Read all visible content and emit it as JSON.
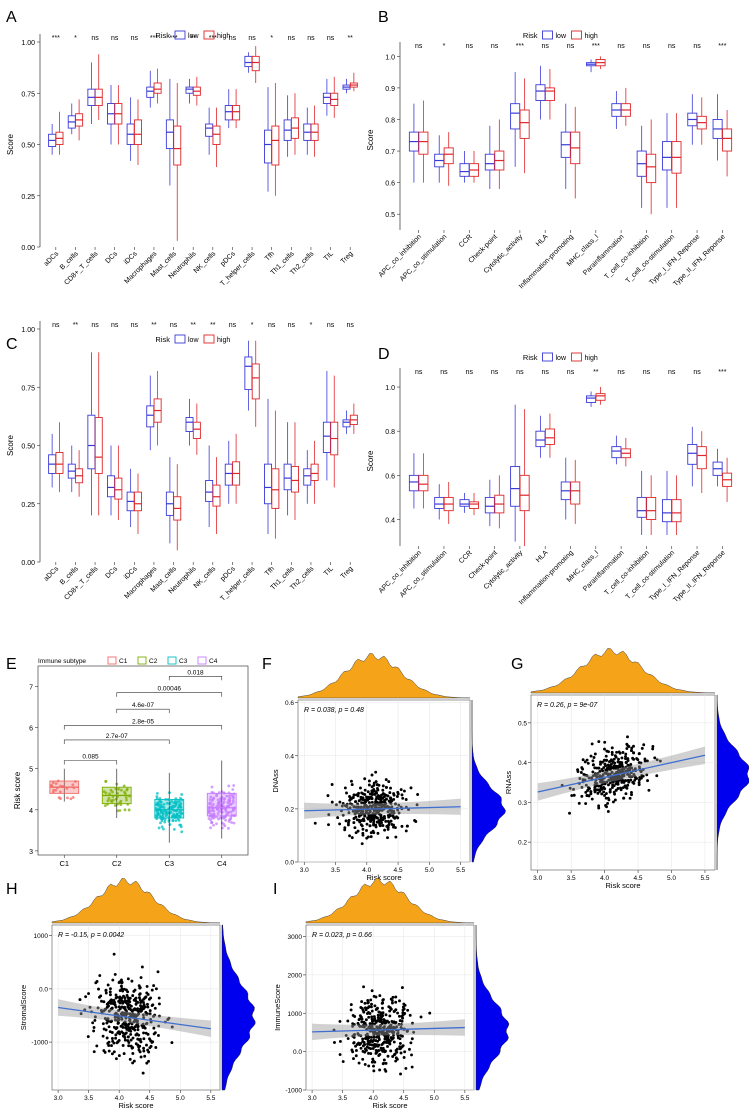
{
  "figure": {
    "colors": {
      "low": "#3a3ad9",
      "high": "#e0262a",
      "c1": "#f26b66",
      "c2": "#7cae00",
      "c3": "#00bfc4",
      "c4": "#c77cff",
      "density_top": "#f5a318",
      "density_right": "#0000ee",
      "fit": "#3f6fd1"
    }
  },
  "chart_data": [
    {
      "panel": "A",
      "type": "box",
      "ylabel": "Score",
      "legend_title": "Risk",
      "legend": [
        "low",
        "high"
      ],
      "ylim": [
        0,
        1
      ],
      "ticks": [
        0,
        0.25,
        0.5,
        0.75,
        1
      ],
      "categories": [
        "aDCs",
        "B_cells",
        "CD8+_T_cells",
        "DCs",
        "iDCs",
        "Macrophages",
        "Mast_cells",
        "Neutrophils",
        "NK_cells",
        "pDCs",
        "T_helper_cells",
        "Tfh",
        "Th1_cells",
        "Th2_cells",
        "TIL",
        "Treg"
      ],
      "sig": [
        "***",
        "*",
        "ns",
        "ns",
        "ns",
        "***",
        "***",
        "**",
        "***",
        "ns",
        "ns",
        "*",
        "ns",
        "ns",
        "ns",
        "**"
      ],
      "low": [
        [
          0.45,
          0.49,
          0.52,
          0.55,
          0.6
        ],
        [
          0.55,
          0.58,
          0.61,
          0.64,
          0.7
        ],
        [
          0.6,
          0.69,
          0.73,
          0.77,
          0.9
        ],
        [
          0.5,
          0.6,
          0.65,
          0.7,
          0.79
        ],
        [
          0.42,
          0.5,
          0.55,
          0.6,
          0.73
        ],
        [
          0.68,
          0.73,
          0.76,
          0.78,
          0.86
        ],
        [
          0.3,
          0.48,
          0.56,
          0.62,
          0.82
        ],
        [
          0.7,
          0.75,
          0.77,
          0.78,
          0.82
        ],
        [
          0.45,
          0.54,
          0.58,
          0.6,
          0.68
        ],
        [
          0.58,
          0.62,
          0.66,
          0.69,
          0.77
        ],
        [
          0.85,
          0.88,
          0.9,
          0.93,
          0.95
        ],
        [
          0.27,
          0.41,
          0.5,
          0.57,
          0.78
        ],
        [
          0.44,
          0.52,
          0.57,
          0.62,
          0.74
        ],
        [
          0.45,
          0.52,
          0.56,
          0.6,
          0.68
        ],
        [
          0.64,
          0.7,
          0.73,
          0.75,
          0.82
        ],
        [
          0.75,
          0.77,
          0.78,
          0.79,
          0.82
        ]
      ],
      "high": [
        [
          0.45,
          0.5,
          0.53,
          0.56,
          0.66
        ],
        [
          0.52,
          0.59,
          0.62,
          0.65,
          0.72
        ],
        [
          0.62,
          0.69,
          0.73,
          0.77,
          0.94
        ],
        [
          0.5,
          0.6,
          0.65,
          0.7,
          0.79
        ],
        [
          0.4,
          0.5,
          0.55,
          0.62,
          0.72
        ],
        [
          0.7,
          0.75,
          0.77,
          0.8,
          0.87
        ],
        [
          0.03,
          0.4,
          0.48,
          0.59,
          0.8
        ],
        [
          0.69,
          0.74,
          0.76,
          0.78,
          0.83
        ],
        [
          0.39,
          0.5,
          0.55,
          0.59,
          0.68
        ],
        [
          0.58,
          0.62,
          0.66,
          0.69,
          0.77
        ],
        [
          0.8,
          0.86,
          0.9,
          0.93,
          0.98
        ],
        [
          0.25,
          0.4,
          0.52,
          0.59,
          0.8
        ],
        [
          0.45,
          0.53,
          0.58,
          0.63,
          0.75
        ],
        [
          0.44,
          0.52,
          0.56,
          0.6,
          0.69
        ],
        [
          0.63,
          0.69,
          0.72,
          0.75,
          0.83
        ],
        [
          0.76,
          0.78,
          0.79,
          0.8,
          0.85
        ]
      ]
    },
    {
      "panel": "B",
      "type": "box",
      "ylabel": "Score",
      "legend_title": "Risk",
      "legend": [
        "low",
        "high"
      ],
      "ylim": [
        0.45,
        1.02
      ],
      "ticks": [
        0.5,
        0.6,
        0.7,
        0.8,
        0.9,
        1.0
      ],
      "categories": [
        "APC_co_inhibition",
        "APC_co_stimulation",
        "CCR",
        "Check-point",
        "Cytolytic_activity",
        "HLA",
        "Inflammation-promoting",
        "MHC_class_I",
        "Parainflammation",
        "T_cell_co-inhibition",
        "T_cell_co-stimulation",
        "Type_I_IFN_Reponse",
        "Type_II_IFN_Reponse"
      ],
      "sig": [
        "ns",
        "*",
        "ns",
        "ns",
        "***",
        "ns",
        "ns",
        "***",
        "ns",
        "ns",
        "ns",
        "ns",
        "***"
      ],
      "low": [
        [
          0.6,
          0.7,
          0.73,
          0.76,
          0.85
        ],
        [
          0.6,
          0.65,
          0.67,
          0.69,
          0.75
        ],
        [
          0.6,
          0.62,
          0.635,
          0.66,
          0.7
        ],
        [
          0.58,
          0.64,
          0.66,
          0.69,
          0.78
        ],
        [
          0.65,
          0.77,
          0.82,
          0.85,
          0.95
        ],
        [
          0.8,
          0.86,
          0.89,
          0.91,
          0.97
        ],
        [
          0.58,
          0.68,
          0.72,
          0.76,
          0.85
        ],
        [
          0.95,
          0.97,
          0.975,
          0.98,
          0.99
        ],
        [
          0.77,
          0.81,
          0.83,
          0.85,
          0.89
        ],
        [
          0.52,
          0.62,
          0.66,
          0.7,
          0.78
        ],
        [
          0.52,
          0.64,
          0.68,
          0.73,
          0.82
        ],
        [
          0.72,
          0.78,
          0.8,
          0.82,
          0.88
        ],
        [
          0.67,
          0.74,
          0.77,
          0.8,
          0.88
        ]
      ],
      "high": [
        [
          0.6,
          0.69,
          0.73,
          0.76,
          0.86
        ],
        [
          0.59,
          0.66,
          0.69,
          0.71,
          0.76
        ],
        [
          0.6,
          0.62,
          0.64,
          0.66,
          0.7
        ],
        [
          0.58,
          0.64,
          0.67,
          0.7,
          0.8
        ],
        [
          0.63,
          0.74,
          0.79,
          0.83,
          0.93
        ],
        [
          0.8,
          0.86,
          0.89,
          0.9,
          0.96
        ],
        [
          0.55,
          0.66,
          0.71,
          0.76,
          0.84
        ],
        [
          0.96,
          0.97,
          0.98,
          0.99,
          1.0
        ],
        [
          0.78,
          0.81,
          0.83,
          0.85,
          0.9
        ],
        [
          0.5,
          0.6,
          0.65,
          0.69,
          0.8
        ],
        [
          0.52,
          0.63,
          0.68,
          0.73,
          0.82
        ],
        [
          0.72,
          0.77,
          0.79,
          0.81,
          0.87
        ],
        [
          0.62,
          0.7,
          0.74,
          0.77,
          0.83
        ]
      ]
    },
    {
      "panel": "C",
      "type": "box",
      "ylabel": "Score",
      "legend_title": "Risk",
      "legend": [
        "low",
        "high"
      ],
      "ylim": [
        0,
        1
      ],
      "ticks": [
        0,
        0.25,
        0.5,
        0.75,
        1
      ],
      "categories": [
        "aDCs",
        "B_cells",
        "CD8+_T_cells",
        "DCs",
        "iDCs",
        "Macrophages",
        "Mast_cells",
        "Neutrophils",
        "NK_cells",
        "pDCs",
        "T_helper_cells",
        "Tfh",
        "Th1_cells",
        "Th2_cells",
        "TIL",
        "Treg"
      ],
      "sig": [
        "ns",
        "**",
        "ns",
        "ns",
        "ns",
        "**",
        "ns",
        "**",
        "**",
        "ns",
        "*",
        "ns",
        "ns",
        "*",
        "ns",
        "ns"
      ],
      "low": [
        [
          0.32,
          0.38,
          0.42,
          0.46,
          0.55
        ],
        [
          0.3,
          0.36,
          0.39,
          0.42,
          0.5
        ],
        [
          0.2,
          0.4,
          0.5,
          0.63,
          0.9
        ],
        [
          0.2,
          0.28,
          0.32,
          0.37,
          0.5
        ],
        [
          0.15,
          0.22,
          0.26,
          0.3,
          0.4
        ],
        [
          0.48,
          0.58,
          0.63,
          0.67,
          0.8
        ],
        [
          0.08,
          0.2,
          0.25,
          0.3,
          0.45
        ],
        [
          0.5,
          0.56,
          0.6,
          0.62,
          0.7
        ],
        [
          0.15,
          0.26,
          0.3,
          0.35,
          0.5
        ],
        [
          0.25,
          0.33,
          0.38,
          0.42,
          0.52
        ],
        [
          0.65,
          0.74,
          0.84,
          0.88,
          0.95
        ],
        [
          0.12,
          0.25,
          0.32,
          0.42,
          0.7
        ],
        [
          0.2,
          0.31,
          0.36,
          0.42,
          0.6
        ],
        [
          0.25,
          0.33,
          0.37,
          0.4,
          0.48
        ],
        [
          0.35,
          0.47,
          0.54,
          0.6,
          0.82
        ],
        [
          0.55,
          0.58,
          0.6,
          0.61,
          0.65
        ]
      ],
      "high": [
        [
          0.3,
          0.38,
          0.42,
          0.47,
          0.6
        ],
        [
          0.28,
          0.34,
          0.37,
          0.4,
          0.48
        ],
        [
          0.2,
          0.38,
          0.45,
          0.62,
          0.9
        ],
        [
          0.18,
          0.27,
          0.31,
          0.36,
          0.5
        ],
        [
          0.12,
          0.22,
          0.25,
          0.3,
          0.38
        ],
        [
          0.5,
          0.6,
          0.65,
          0.7,
          0.82
        ],
        [
          0.05,
          0.18,
          0.23,
          0.28,
          0.42
        ],
        [
          0.46,
          0.53,
          0.57,
          0.6,
          0.68
        ],
        [
          0.12,
          0.24,
          0.28,
          0.33,
          0.45
        ],
        [
          0.25,
          0.33,
          0.38,
          0.43,
          0.55
        ],
        [
          0.58,
          0.7,
          0.79,
          0.85,
          0.95
        ],
        [
          0.1,
          0.23,
          0.31,
          0.4,
          0.65
        ],
        [
          0.18,
          0.3,
          0.35,
          0.41,
          0.6
        ],
        [
          0.25,
          0.35,
          0.38,
          0.42,
          0.52
        ],
        [
          0.32,
          0.46,
          0.53,
          0.6,
          0.8
        ],
        [
          0.55,
          0.59,
          0.61,
          0.63,
          0.68
        ]
      ]
    },
    {
      "panel": "D",
      "type": "box",
      "ylabel": "Score",
      "legend_title": "Risk",
      "legend": [
        "low",
        "high"
      ],
      "ylim": [
        0.28,
        1.05
      ],
      "ticks": [
        0.4,
        0.6,
        0.8,
        1.0
      ],
      "categories": [
        "APC_co_inhibition",
        "APC_co_stimulation",
        "CCR",
        "Check-point",
        "Cytolytic_activity",
        "HLA",
        "Inflammation-promoting",
        "MHC_class_I",
        "Parainflammation",
        "T_cell_co-inhibition",
        "T_cell_co-stimulation",
        "Type_I_IFN_Reponse",
        "Type_II_IFN_Reponse"
      ],
      "sig": [
        "ns",
        "ns",
        "ns",
        "ns",
        "ns",
        "ns",
        "ns",
        "**",
        "ns",
        "ns",
        "ns",
        "ns",
        "***"
      ],
      "low": [
        [
          0.45,
          0.53,
          0.57,
          0.6,
          0.7
        ],
        [
          0.4,
          0.45,
          0.47,
          0.5,
          0.56
        ],
        [
          0.43,
          0.46,
          0.47,
          0.49,
          0.52
        ],
        [
          0.37,
          0.43,
          0.46,
          0.5,
          0.58
        ],
        [
          0.3,
          0.46,
          0.54,
          0.64,
          0.92
        ],
        [
          0.68,
          0.73,
          0.76,
          0.8,
          0.87
        ],
        [
          0.4,
          0.49,
          0.53,
          0.57,
          0.68
        ],
        [
          0.91,
          0.93,
          0.95,
          0.96,
          0.98
        ],
        [
          0.65,
          0.68,
          0.71,
          0.73,
          0.78
        ],
        [
          0.33,
          0.41,
          0.44,
          0.5,
          0.62
        ],
        [
          0.33,
          0.39,
          0.43,
          0.49,
          0.62
        ],
        [
          0.55,
          0.65,
          0.7,
          0.74,
          0.82
        ],
        [
          0.55,
          0.6,
          0.63,
          0.66,
          0.72
        ]
      ],
      "high": [
        [
          0.45,
          0.53,
          0.56,
          0.6,
          0.7
        ],
        [
          0.38,
          0.44,
          0.47,
          0.5,
          0.57
        ],
        [
          0.42,
          0.45,
          0.47,
          0.48,
          0.52
        ],
        [
          0.36,
          0.43,
          0.47,
          0.51,
          0.6
        ],
        [
          0.28,
          0.44,
          0.51,
          0.6,
          0.9
        ],
        [
          0.68,
          0.74,
          0.77,
          0.81,
          0.88
        ],
        [
          0.38,
          0.47,
          0.53,
          0.57,
          0.67
        ],
        [
          0.92,
          0.94,
          0.96,
          0.97,
          1.0
        ],
        [
          0.64,
          0.68,
          0.7,
          0.72,
          0.77
        ],
        [
          0.33,
          0.4,
          0.44,
          0.5,
          0.6
        ],
        [
          0.33,
          0.39,
          0.43,
          0.49,
          0.6
        ],
        [
          0.52,
          0.63,
          0.69,
          0.73,
          0.8
        ],
        [
          0.48,
          0.55,
          0.58,
          0.61,
          0.68
        ]
      ]
    },
    {
      "panel": "E",
      "type": "box",
      "ylabel": "Risk score",
      "legend_title": "Immune subtype",
      "legend": [
        "C1",
        "C2",
        "C3",
        "C4"
      ],
      "ylim": [
        2.9,
        7.5
      ],
      "ticks": [
        3,
        4,
        5,
        6,
        7
      ],
      "categories": [
        "C1",
        "C2",
        "C3",
        "C4"
      ],
      "boxes": [
        [
          4.2,
          4.4,
          4.55,
          4.7,
          5.0
        ],
        [
          3.8,
          4.15,
          4.35,
          4.55,
          5.0
        ],
        [
          3.2,
          3.8,
          4.0,
          4.25,
          4.9
        ],
        [
          3.3,
          3.85,
          4.05,
          4.4,
          5.2
        ]
      ],
      "comparisons": [
        {
          "from": "C1",
          "to": "C2",
          "label": "0.085"
        },
        {
          "from": "C1",
          "to": "C3",
          "label": "2.7e-07"
        },
        {
          "from": "C1",
          "to": "C4",
          "label": "2.8e-05"
        },
        {
          "from": "C2",
          "to": "C3",
          "label": "4.6e-07"
        },
        {
          "from": "C2",
          "to": "C4",
          "label": "0.00046"
        },
        {
          "from": "C3",
          "to": "C4",
          "label": "0.018"
        }
      ]
    },
    {
      "panel": "F",
      "type": "scatter",
      "xlabel": "Risk score",
      "ylabel": "DNAss",
      "annotation": "R = 0.038, p = 0.48",
      "xlim": [
        2.9,
        5.65
      ],
      "ylim": [
        0,
        0.61
      ],
      "xticks": [
        3.0,
        3.5,
        4.0,
        4.5,
        5.0,
        5.5
      ],
      "yticks": [
        0.0,
        0.2,
        0.4,
        0.6
      ],
      "fit": {
        "intercept": 0.175,
        "slope": 0.006
      },
      "x_mean": 4.1,
      "x_sd": 0.45,
      "y_mean": 0.2,
      "y_sd": 0.08,
      "n": 380,
      "seed": 11
    },
    {
      "panel": "G",
      "type": "scatter",
      "xlabel": "Risk score",
      "ylabel": "RNAss",
      "annotation": "R = 0.26, p = 9e-07",
      "xlim": [
        2.9,
        5.65
      ],
      "ylim": [
        0.13,
        0.57
      ],
      "xticks": [
        3.0,
        3.5,
        4.0,
        4.5,
        5.0,
        5.5
      ],
      "yticks": [
        0.2,
        0.3,
        0.4,
        0.5
      ],
      "fit": {
        "intercept": 0.215,
        "slope": 0.037
      },
      "x_mean": 4.1,
      "x_sd": 0.45,
      "y_mean": 0.37,
      "y_sd": 0.06,
      "n": 380,
      "seed": 23
    },
    {
      "panel": "H",
      "type": "scatter",
      "xlabel": "Risk score",
      "ylabel": "StromalScore",
      "annotation": "R = -0.15, p = 0.0042",
      "xlim": [
        2.9,
        5.65
      ],
      "ylim": [
        -1900,
        1200
      ],
      "xticks": [
        3.0,
        3.5,
        4.0,
        4.5,
        5.0,
        5.5
      ],
      "yticks": [
        -1000,
        0,
        1000
      ],
      "fit": {
        "intercept": 130,
        "slope": -160
      },
      "x_mean": 4.1,
      "x_sd": 0.45,
      "y_mean": -530,
      "y_sd": 620,
      "n": 380,
      "seed": 37
    },
    {
      "panel": "I",
      "type": "scatter",
      "xlabel": "Risk score",
      "ylabel": "ImmuneScore",
      "annotation": "R = 0.023, p = 0.66",
      "xlim": [
        2.9,
        5.65
      ],
      "ylim": [
        -1000,
        3300
      ],
      "xticks": [
        3.0,
        3.5,
        4.0,
        4.5,
        5.0,
        5.5
      ],
      "yticks": [
        -1000,
        0,
        1000,
        2000,
        3000
      ],
      "fit": {
        "intercept": 380,
        "slope": 45
      },
      "x_mean": 4.1,
      "x_sd": 0.45,
      "y_mean": 560,
      "y_sd": 720,
      "n": 380,
      "seed": 51
    }
  ]
}
